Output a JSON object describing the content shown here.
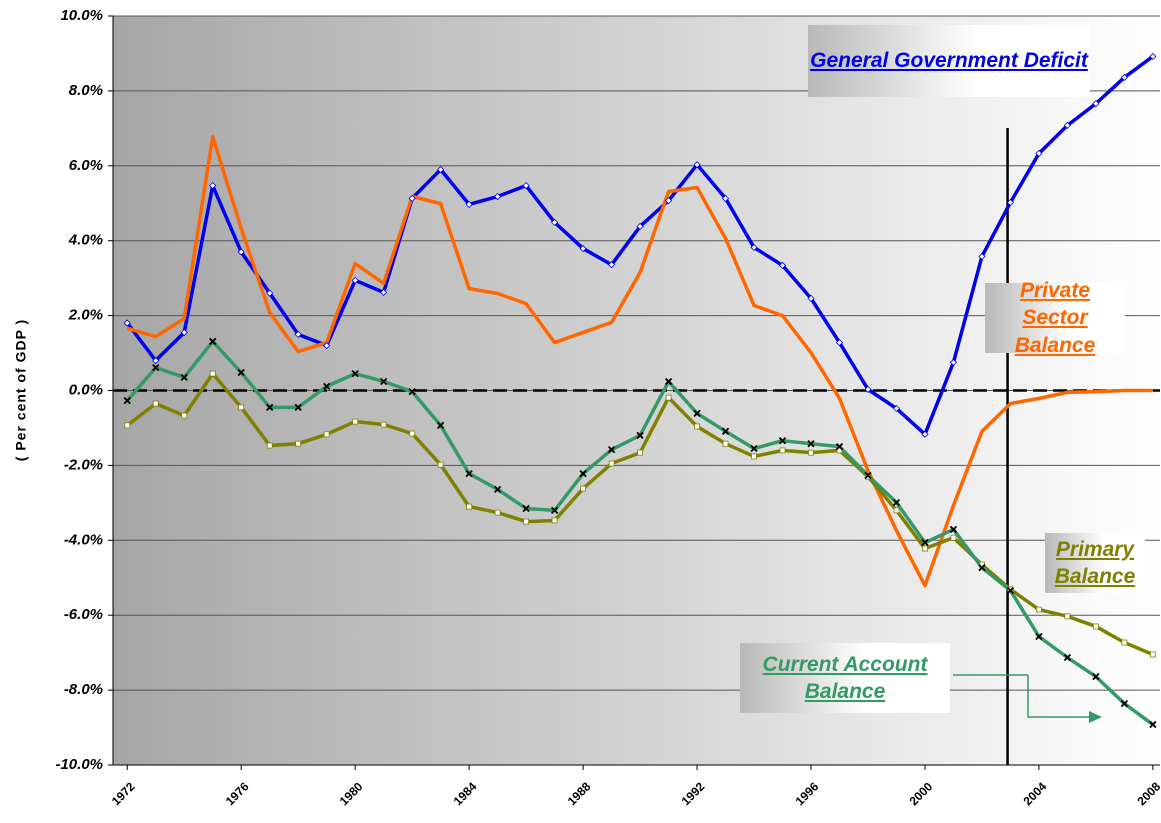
{
  "chart_data": {
    "type": "line",
    "y_label": "( Per cent of GDP )",
    "x": [
      1972,
      1973,
      1974,
      1975,
      1976,
      1977,
      1978,
      1979,
      1980,
      1981,
      1982,
      1983,
      1984,
      1985,
      1986,
      1987,
      1988,
      1989,
      1990,
      1991,
      1992,
      1993,
      1994,
      1995,
      1996,
      1997,
      1998,
      1999,
      2000,
      2001,
      2002,
      2003,
      2004,
      2005,
      2006,
      2007,
      2008
    ],
    "xlim": [
      1971.5,
      2008.25
    ],
    "xticks": [
      1972,
      1976,
      1980,
      1984,
      1988,
      1992,
      1996,
      2000,
      2004,
      2008
    ],
    "ylim": [
      -10,
      10
    ],
    "yticks": [
      {
        "value": -10,
        "label": "-10.0%"
      },
      {
        "value": -8,
        "label": "-8.0%"
      },
      {
        "value": -6,
        "label": "-6.0%"
      },
      {
        "value": -4,
        "label": "-4.0%"
      },
      {
        "value": -2,
        "label": "-2.0%"
      },
      {
        "value": 0,
        "label": "0.0%"
      },
      {
        "value": 2,
        "label": "2.0%"
      },
      {
        "value": 4,
        "label": "4.0%"
      },
      {
        "value": 6,
        "label": "6.0%"
      },
      {
        "value": 8,
        "label": "8.0%"
      },
      {
        "value": 10,
        "label": "10.0%"
      }
    ],
    "grid": true,
    "hlines": [
      0
    ],
    "vlines": [
      2002.9
    ],
    "series": [
      {
        "name": "General Government Deficit",
        "color": "#0000ee",
        "marker": "diamond",
        "values": [
          1.8,
          0.8,
          1.55,
          5.47,
          3.7,
          2.6,
          1.5,
          1.2,
          2.94,
          2.62,
          5.13,
          5.9,
          4.97,
          5.18,
          5.47,
          4.49,
          3.79,
          3.36,
          4.38,
          5.07,
          6.03,
          5.13,
          3.82,
          3.34,
          2.46,
          1.28,
          0.03,
          -0.48,
          -1.17,
          0.75,
          3.58,
          5.02,
          6.33,
          7.08,
          7.66,
          8.36,
          8.92
        ]
      },
      {
        "name": "Private Sector Balance",
        "color": "#ff6600",
        "marker": "none",
        "values": [
          1.66,
          1.44,
          1.92,
          6.78,
          4.33,
          2.08,
          1.04,
          1.28,
          3.39,
          2.86,
          5.18,
          4.99,
          2.72,
          2.59,
          2.32,
          1.28,
          1.55,
          1.82,
          3.15,
          5.31,
          5.42,
          4.06,
          2.27,
          2.0,
          1.01,
          -0.21,
          -2.14,
          -3.74,
          -5.21,
          -3.07,
          -1.09,
          -0.35,
          -0.21,
          -0.05,
          -0.03,
          0,
          0
        ]
      },
      {
        "name": "Primary Balance",
        "color": "#808000",
        "marker": "square",
        "values": [
          -0.93,
          -0.35,
          -0.67,
          0.45,
          -0.45,
          -1.47,
          -1.42,
          -1.17,
          -0.83,
          -0.91,
          -1.15,
          -1.98,
          -3.1,
          -3.26,
          -3.5,
          -3.47,
          -2.62,
          -1.95,
          -1.66,
          -0.19,
          -0.96,
          -1.42,
          -1.76,
          -1.6,
          -1.66,
          -1.6,
          -2.3,
          -3.2,
          -4.22,
          -3.93,
          -4.65,
          -5.31,
          -5.85,
          -6.03,
          -6.3,
          -6.73,
          -7.05
        ]
      },
      {
        "name": "Current Account Balance",
        "color": "#339966",
        "marker": "x",
        "values": [
          -0.27,
          0.61,
          0.35,
          1.31,
          0.48,
          -0.45,
          -0.45,
          0.11,
          0.45,
          0.24,
          -0.03,
          -0.93,
          -2.22,
          -2.64,
          -3.15,
          -3.2,
          -2.22,
          -1.58,
          -1.2,
          0.24,
          -0.61,
          -1.09,
          -1.55,
          -1.34,
          -1.42,
          -1.5,
          -2.27,
          -2.99,
          -4.06,
          -3.71,
          -4.73,
          -5.34,
          -6.57,
          -7.13,
          -7.64,
          -8.36,
          -8.92
        ]
      }
    ]
  }
}
